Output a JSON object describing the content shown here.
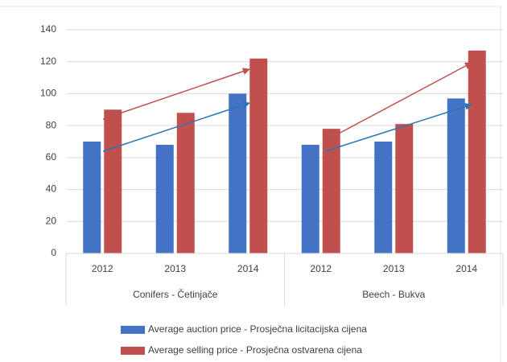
{
  "chart_data": {
    "type": "bar",
    "groups": [
      {
        "label": "Conifers - Četinjače",
        "categories": [
          "2012",
          "2013",
          "2014"
        ]
      },
      {
        "label": "Beech - Bukva",
        "categories": [
          "2012",
          "2013",
          "2014"
        ]
      }
    ],
    "series": [
      {
        "name": "Average auction price - Prosječna licitacijska cijena",
        "color": "#4472c4",
        "values": [
          70,
          68,
          100,
          68,
          70,
          97
        ]
      },
      {
        "name": "Average selling price - Prosječna ostvarena cijena",
        "color": "#c0504d",
        "values": [
          90,
          88,
          122,
          78,
          81,
          127
        ]
      }
    ],
    "ylim": [
      0,
      140
    ],
    "yticks": [
      0,
      20,
      40,
      60,
      80,
      100,
      120,
      140
    ],
    "grid": true
  }
}
